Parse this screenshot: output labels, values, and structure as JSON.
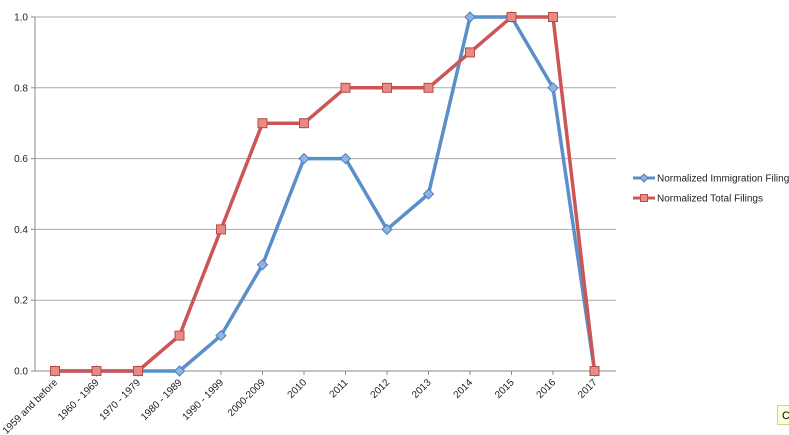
{
  "chart_data": {
    "type": "line",
    "title": "",
    "xlabel": "",
    "ylabel": "",
    "ylim": [
      0,
      1
    ],
    "y_ticks": [
      "0.0",
      "0.2",
      "0.4",
      "0.6",
      "0.8",
      "1.0"
    ],
    "grid": true,
    "legend_position": "right",
    "categories": [
      "1959 and before",
      "1960 - 1969",
      "1970 - 1979",
      "1980 - 1989",
      "1990 - 1999",
      "2000-2009",
      "2010",
      "2011",
      "2012",
      "2013",
      "2014",
      "2015",
      "2016",
      "2017"
    ],
    "series": [
      {
        "name": "Normalized Immigration Filings",
        "color": "#5b8fc7",
        "marker": "diamond",
        "values": [
          0,
          0,
          0,
          0,
          0.1,
          0.3,
          0.6,
          0.6,
          0.4,
          0.5,
          1.0,
          1.0,
          0.8,
          0
        ]
      },
      {
        "name": "Normalized Total Filings",
        "color": "#cc5555",
        "marker": "square",
        "values": [
          0,
          0,
          0,
          0.1,
          0.4,
          0.7,
          0.7,
          0.8,
          0.8,
          0.8,
          0.9,
          1.0,
          1.0,
          0
        ]
      }
    ]
  },
  "tooltip": {
    "text": "Ch"
  }
}
